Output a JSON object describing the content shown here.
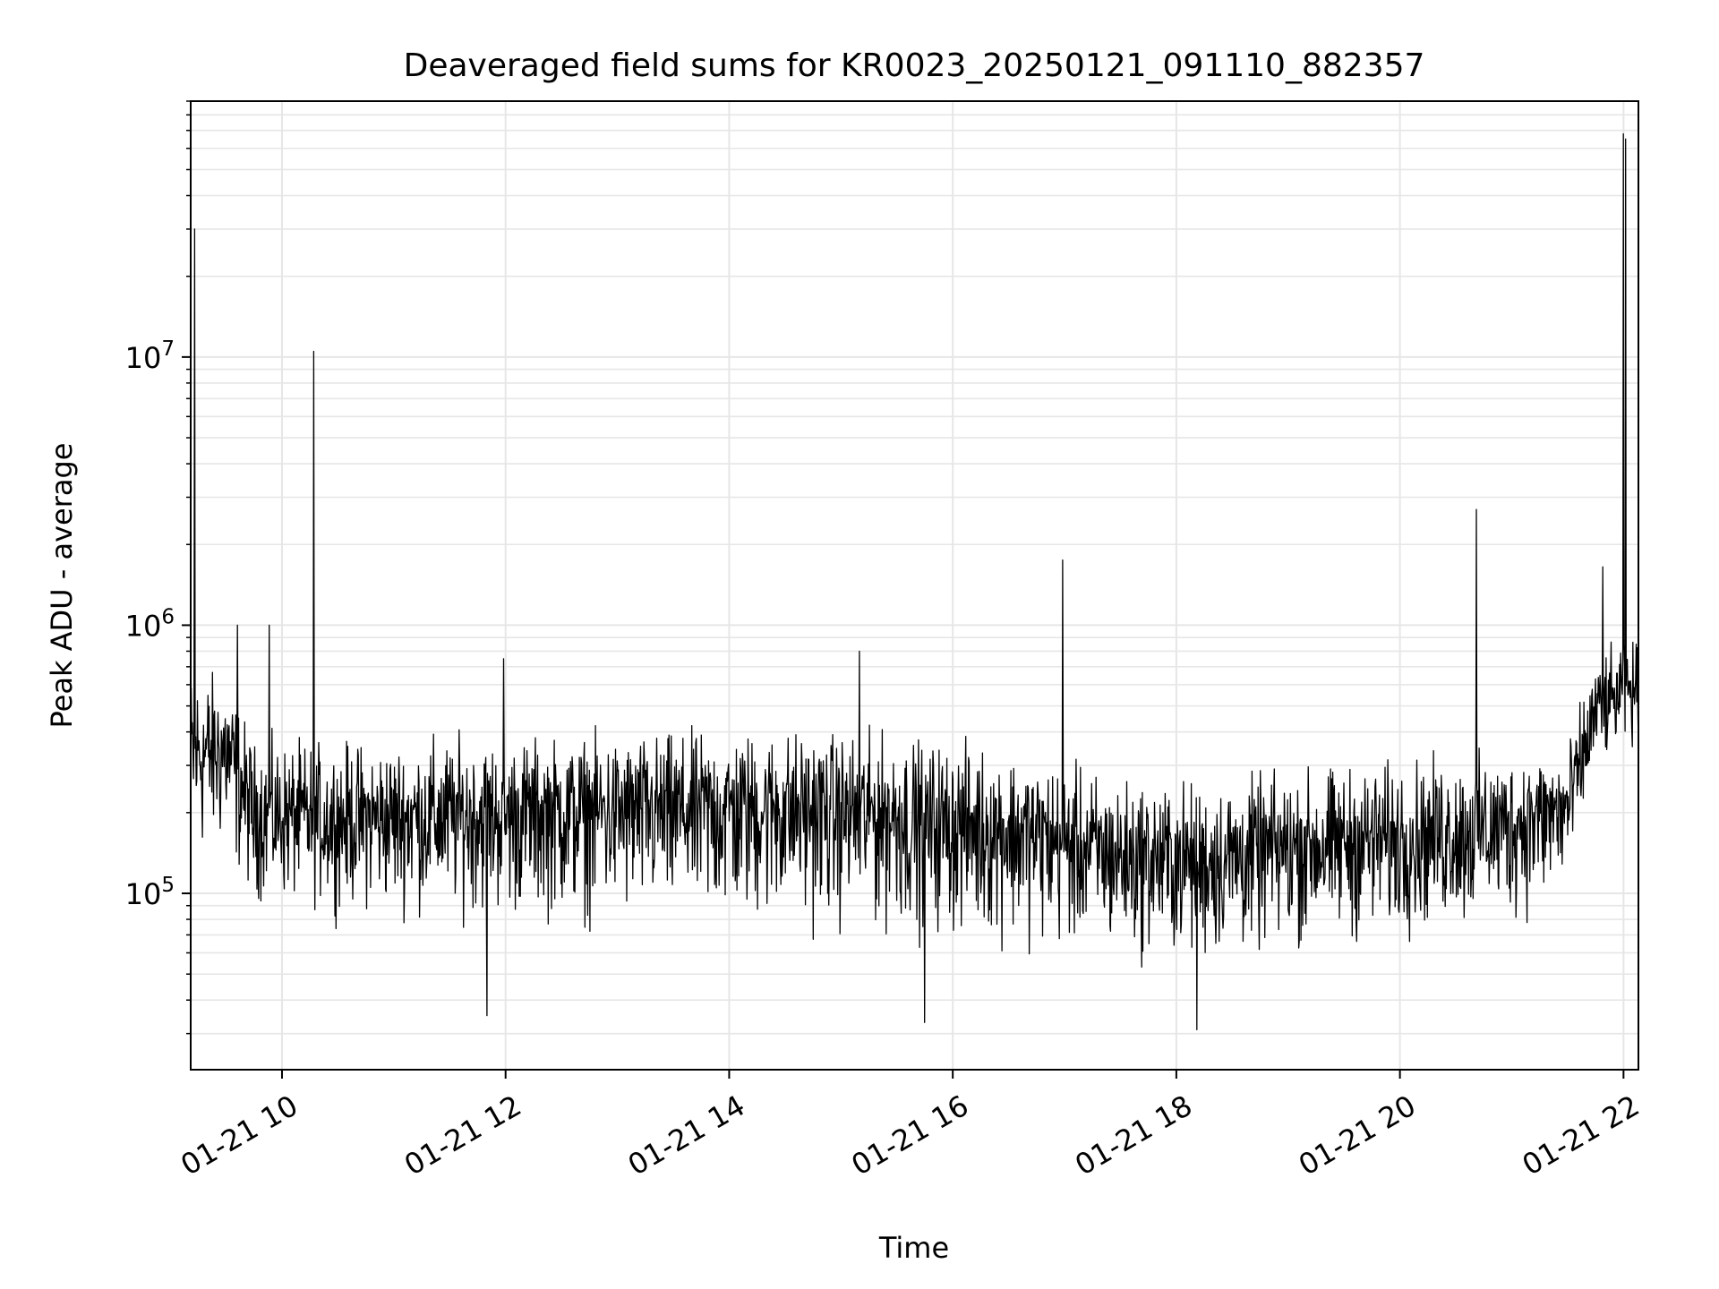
{
  "chart_data": {
    "type": "line",
    "title": "Deaveraged field sums for KR0023_20250121_091110_882357",
    "xlabel": "Time",
    "ylabel": "Peak ADU - average",
    "xlim": [
      "2025-01-21 09:11",
      "2025-01-21 22:08"
    ],
    "ylim": [
      22000,
      90000000
    ],
    "yscale": "log",
    "grid": true,
    "grid_minor": true,
    "x_tick_labels": [
      "01-21 10",
      "01-21 12",
      "01-21 14",
      "01-21 16",
      "01-21 18",
      "01-21 20",
      "01-21 22"
    ],
    "x_tick_values": [
      "2025-01-21 10:00",
      "2025-01-21 12:00",
      "2025-01-21 14:00",
      "2025-01-21 16:00",
      "2025-01-21 18:00",
      "2025-01-21 20:00",
      "2025-01-21 22:00"
    ],
    "y_ticks": [
      {
        "value": 100000,
        "mantissa": "10",
        "exponent": "5"
      },
      {
        "value": 1000000,
        "mantissa": "10",
        "exponent": "6"
      },
      {
        "value": 10000000,
        "mantissa": "10",
        "exponent": "7"
      }
    ],
    "series": [
      {
        "color": "#000000",
        "description": "noisy per-frame trace; baseline envelope (time → [low, typical, high]) plus isolated spikes",
        "baseline": [
          {
            "x": "2025-01-21 09:11",
            "low": 100000,
            "mid": 330000,
            "high": 900000
          },
          {
            "x": "2025-01-21 09:30",
            "low": 110000,
            "mid": 350000,
            "high": 800000
          },
          {
            "x": "2025-01-21 09:45",
            "low": 75000,
            "mid": 200000,
            "high": 450000
          },
          {
            "x": "2025-01-21 10:30",
            "low": 70000,
            "mid": 190000,
            "high": 450000
          },
          {
            "x": "2025-01-21 11:30",
            "low": 65000,
            "mid": 195000,
            "high": 480000
          },
          {
            "x": "2025-01-21 12:30",
            "low": 60000,
            "mid": 205000,
            "high": 470000
          },
          {
            "x": "2025-01-21 13:30",
            "low": 55000,
            "mid": 210000,
            "high": 480000
          },
          {
            "x": "2025-01-21 14:30",
            "low": 55000,
            "mid": 215000,
            "high": 500000
          },
          {
            "x": "2025-01-21 15:30",
            "low": 52000,
            "mid": 200000,
            "high": 480000
          },
          {
            "x": "2025-01-21 16:30",
            "low": 50000,
            "mid": 175000,
            "high": 430000
          },
          {
            "x": "2025-01-21 17:30",
            "low": 45000,
            "mid": 140000,
            "high": 330000
          },
          {
            "x": "2025-01-21 18:15",
            "low": 42000,
            "mid": 135000,
            "high": 320000
          },
          {
            "x": "2025-01-21 19:00",
            "low": 48000,
            "mid": 150000,
            "high": 350000
          },
          {
            "x": "2025-01-21 20:00",
            "low": 52000,
            "mid": 165000,
            "high": 380000
          },
          {
            "x": "2025-01-21 21:00",
            "low": 60000,
            "mid": 185000,
            "high": 400000
          },
          {
            "x": "2025-01-21 21:30",
            "low": 75000,
            "mid": 210000,
            "high": 420000
          },
          {
            "x": "2025-01-21 21:45",
            "low": 260000,
            "mid": 480000,
            "high": 900000
          },
          {
            "x": "2025-01-21 22:08",
            "low": 300000,
            "mid": 600000,
            "high": 1000000
          }
        ],
        "spikes": [
          {
            "x": "2025-01-21 09:13",
            "y": 30000000
          },
          {
            "x": "2025-01-21 09:36",
            "y": 1000000
          },
          {
            "x": "2025-01-21 09:53",
            "y": 1000000
          },
          {
            "x": "2025-01-21 10:17",
            "y": 10500000
          },
          {
            "x": "2025-01-21 11:50",
            "y": 35000
          },
          {
            "x": "2025-01-21 11:59",
            "y": 750000
          },
          {
            "x": "2025-01-21 15:10",
            "y": 800000
          },
          {
            "x": "2025-01-21 15:45",
            "y": 33000
          },
          {
            "x": "2025-01-21 16:59",
            "y": 1750000
          },
          {
            "x": "2025-01-21 18:11",
            "y": 31000
          },
          {
            "x": "2025-01-21 20:41",
            "y": 2700000
          },
          {
            "x": "2025-01-21 21:49",
            "y": 1650000
          },
          {
            "x": "2025-01-21 22:00",
            "y": 68000000
          },
          {
            "x": "2025-01-21 22:01",
            "y": 65000000
          }
        ]
      }
    ]
  }
}
